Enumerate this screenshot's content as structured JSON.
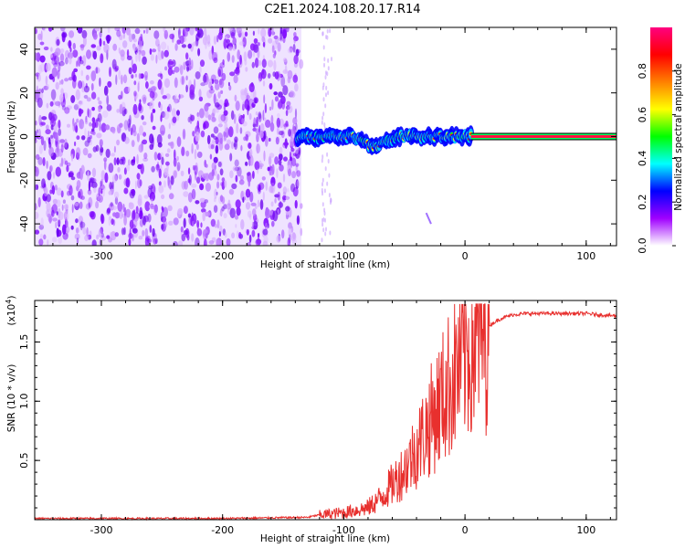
{
  "title": "C2E1.2024.108.20.17.R14",
  "chart_data": [
    {
      "type": "heatmap",
      "xlabel": "Height of straight line (km)",
      "ylabel": "Frequency (Hz)",
      "xlim": [
        -355,
        125
      ],
      "ylim": [
        -50,
        50
      ],
      "xticks": [
        -300,
        -200,
        -100,
        0,
        100
      ],
      "yticks": [
        -40,
        -20,
        0,
        20,
        40
      ],
      "colorbar": {
        "label": "Normalized spectral amplitude",
        "range": [
          0,
          1
        ],
        "ticks": [
          0.0,
          0.2,
          0.4,
          0.6,
          0.8
        ],
        "colors": [
          "#ffffff",
          "#a000ff",
          "#0000ff",
          "#00ffff",
          "#00ff00",
          "#ffff00",
          "#ff8000",
          "#ff0000",
          "#ff0080"
        ]
      },
      "noise_region_x": [
        -355,
        -135
      ],
      "signal_line_frequency": 0,
      "colors": {
        "noise": "#7a00ff",
        "core": "#ff0000",
        "mid": "#00ff00",
        "edge": "#0000ff"
      }
    },
    {
      "type": "line",
      "xlabel": "Height of straight line (km)",
      "ylabel": "SNR (10 * v/v)",
      "multiplier_label": "(x10",
      "multiplier_exp": "4",
      "xlim": [
        -355,
        125
      ],
      "ylim": [
        0,
        1.85
      ],
      "xticks": [
        -300,
        -200,
        -100,
        0,
        100
      ],
      "yticks": [
        0.5,
        1.0,
        1.5
      ],
      "ytick_labels": [
        "0.5",
        "1.0",
        "1.5"
      ],
      "line_color": "#e8302e",
      "series": [
        {
          "x": [
            -355,
            -200,
            -130,
            -120,
            -100,
            -80,
            -70,
            -60,
            -50,
            -40,
            -30,
            -20,
            -10,
            0,
            10,
            20,
            30,
            40,
            50,
            60,
            80,
            100,
            110,
            125
          ],
          "y": [
            0.01,
            0.01,
            0.02,
            0.04,
            0.06,
            0.1,
            0.18,
            0.3,
            0.42,
            0.6,
            0.8,
            1.0,
            1.2,
            1.4,
            1.55,
            1.64,
            1.7,
            1.73,
            1.74,
            1.74,
            1.74,
            1.74,
            1.73,
            1.72
          ]
        }
      ]
    }
  ]
}
